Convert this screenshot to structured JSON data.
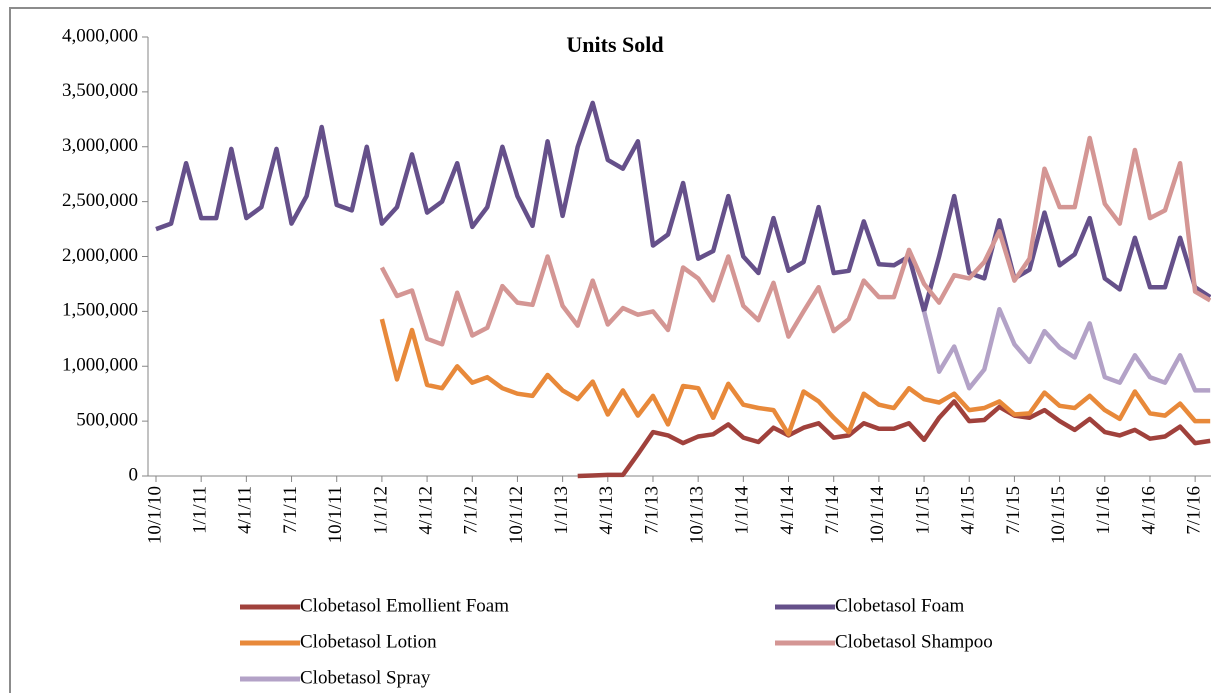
{
  "chart_data": {
    "type": "line",
    "title": "Units Sold",
    "categories": [
      "10/1/10",
      null,
      null,
      "1/1/11",
      null,
      null,
      "4/1/11",
      null,
      null,
      "7/1/11",
      null,
      null,
      "10/1/11",
      null,
      null,
      "1/1/12",
      null,
      null,
      "4/1/12",
      null,
      null,
      "7/1/12",
      null,
      null,
      "10/1/12",
      null,
      null,
      "1/1/13",
      null,
      null,
      "4/1/13",
      null,
      null,
      "7/1/13",
      null,
      null,
      "10/1/13",
      null,
      null,
      "1/1/14",
      null,
      null,
      "4/1/14",
      null,
      null,
      "7/1/14",
      null,
      null,
      "10/1/14",
      null,
      null,
      "1/1/15",
      null,
      null,
      "4/1/15",
      null,
      null,
      "7/1/15",
      null,
      null,
      "10/1/15",
      null,
      null,
      "1/1/16",
      null,
      null,
      "4/1/16",
      null,
      null,
      "7/1/16",
      null
    ],
    "ylim": [
      0,
      4000000
    ],
    "yticks": [
      0,
      {
        "value": 500000,
        "label": "500,000"
      },
      {
        "value": 1000000,
        "label": "1,000,000"
      },
      {
        "value": 1500000,
        "label": "1,500,000"
      },
      {
        "value": 2000000,
        "label": "2,000,000"
      },
      {
        "value": 2500000,
        "label": "2,500,000"
      },
      {
        "value": 3000000,
        "label": "3,000,000"
      },
      {
        "value": 3500000,
        "label": "3,500,000"
      },
      {
        "value": 4000000,
        "label": "4,000,000"
      }
    ],
    "legend": "bottom",
    "series": [
      {
        "name": "Clobetasol Emollient Foam",
        "color": "#a0413c",
        "values": [
          null,
          null,
          null,
          null,
          null,
          null,
          null,
          null,
          null,
          null,
          null,
          null,
          null,
          null,
          null,
          null,
          null,
          null,
          null,
          null,
          null,
          null,
          null,
          null,
          null,
          null,
          null,
          null,
          0,
          5000,
          10000,
          10000,
          200000,
          400000,
          370000,
          300000,
          360000,
          380000,
          470000,
          350000,
          310000,
          440000,
          370000,
          440000,
          480000,
          350000,
          370000,
          480000,
          430000,
          430000,
          480000,
          330000,
          530000,
          680000,
          500000,
          510000,
          630000,
          550000,
          530000,
          600000,
          500000,
          420000,
          520000,
          400000,
          370000,
          420000,
          340000,
          360000,
          450000,
          300000,
          320000
        ]
      },
      {
        "name": "Clobetasol Foam",
        "color": "#65508a",
        "values": [
          2250000,
          2300000,
          2850000,
          2350000,
          2350000,
          2980000,
          2350000,
          2450000,
          2980000,
          2300000,
          2550000,
          3180000,
          2470000,
          2420000,
          3000000,
          2300000,
          2450000,
          2930000,
          2400000,
          2500000,
          2850000,
          2270000,
          2450000,
          3000000,
          2550000,
          2280000,
          3050000,
          2370000,
          3000000,
          3400000,
          2880000,
          2800000,
          3050000,
          2100000,
          2200000,
          2670000,
          1980000,
          2050000,
          2550000,
          2000000,
          1850000,
          2350000,
          1870000,
          1950000,
          2450000,
          1850000,
          1870000,
          2320000,
          1930000,
          1920000,
          2000000,
          1500000,
          2000000,
          2550000,
          1850000,
          1800000,
          2330000,
          1800000,
          1880000,
          2400000,
          1920000,
          2020000,
          2350000,
          1800000,
          1700000,
          2170000,
          1720000,
          1720000,
          2170000,
          1720000,
          1630000
        ]
      },
      {
        "name": "Clobetasol Lotion",
        "color": "#e8893a",
        "values": [
          null,
          null,
          null,
          null,
          null,
          null,
          null,
          null,
          null,
          null,
          null,
          null,
          null,
          null,
          null,
          1430000,
          880000,
          1330000,
          830000,
          800000,
          1000000,
          850000,
          900000,
          800000,
          750000,
          730000,
          920000,
          780000,
          700000,
          860000,
          560000,
          780000,
          550000,
          730000,
          470000,
          820000,
          800000,
          530000,
          840000,
          650000,
          620000,
          600000,
          380000,
          770000,
          680000,
          530000,
          400000,
          750000,
          650000,
          620000,
          800000,
          700000,
          670000,
          750000,
          600000,
          620000,
          680000,
          560000,
          570000,
          760000,
          640000,
          620000,
          730000,
          600000,
          520000,
          770000,
          570000,
          550000,
          660000,
          500000,
          500000
        ]
      },
      {
        "name": "Clobetasol Shampoo",
        "color": "#d49694",
        "values": [
          null,
          null,
          null,
          null,
          null,
          null,
          null,
          null,
          null,
          null,
          null,
          null,
          null,
          null,
          null,
          1900000,
          1640000,
          1690000,
          1250000,
          1200000,
          1670000,
          1280000,
          1350000,
          1730000,
          1580000,
          1560000,
          2000000,
          1550000,
          1370000,
          1780000,
          1380000,
          1530000,
          1470000,
          1500000,
          1330000,
          1900000,
          1800000,
          1600000,
          2000000,
          1550000,
          1420000,
          1760000,
          1270000,
          1500000,
          1720000,
          1320000,
          1430000,
          1780000,
          1630000,
          1630000,
          2060000,
          1750000,
          1580000,
          1830000,
          1800000,
          1950000,
          2230000,
          1780000,
          1980000,
          2800000,
          2450000,
          2450000,
          3080000,
          2480000,
          2300000,
          2970000,
          2350000,
          2420000,
          2850000,
          1680000,
          1600000
        ]
      },
      {
        "name": "Clobetasol Spray",
        "color": "#b3a2c7",
        "values": [
          null,
          null,
          null,
          null,
          null,
          null,
          null,
          null,
          null,
          null,
          null,
          null,
          null,
          null,
          null,
          null,
          null,
          null,
          null,
          null,
          null,
          null,
          null,
          null,
          null,
          null,
          null,
          null,
          null,
          null,
          null,
          null,
          null,
          null,
          null,
          null,
          null,
          null,
          null,
          null,
          null,
          null,
          null,
          null,
          null,
          null,
          null,
          null,
          null,
          null,
          null,
          1500000,
          950000,
          1180000,
          800000,
          970000,
          1520000,
          1200000,
          1040000,
          1320000,
          1170000,
          1080000,
          1390000,
          900000,
          850000,
          1100000,
          900000,
          850000,
          1100000,
          780000,
          780000
        ]
      }
    ]
  }
}
